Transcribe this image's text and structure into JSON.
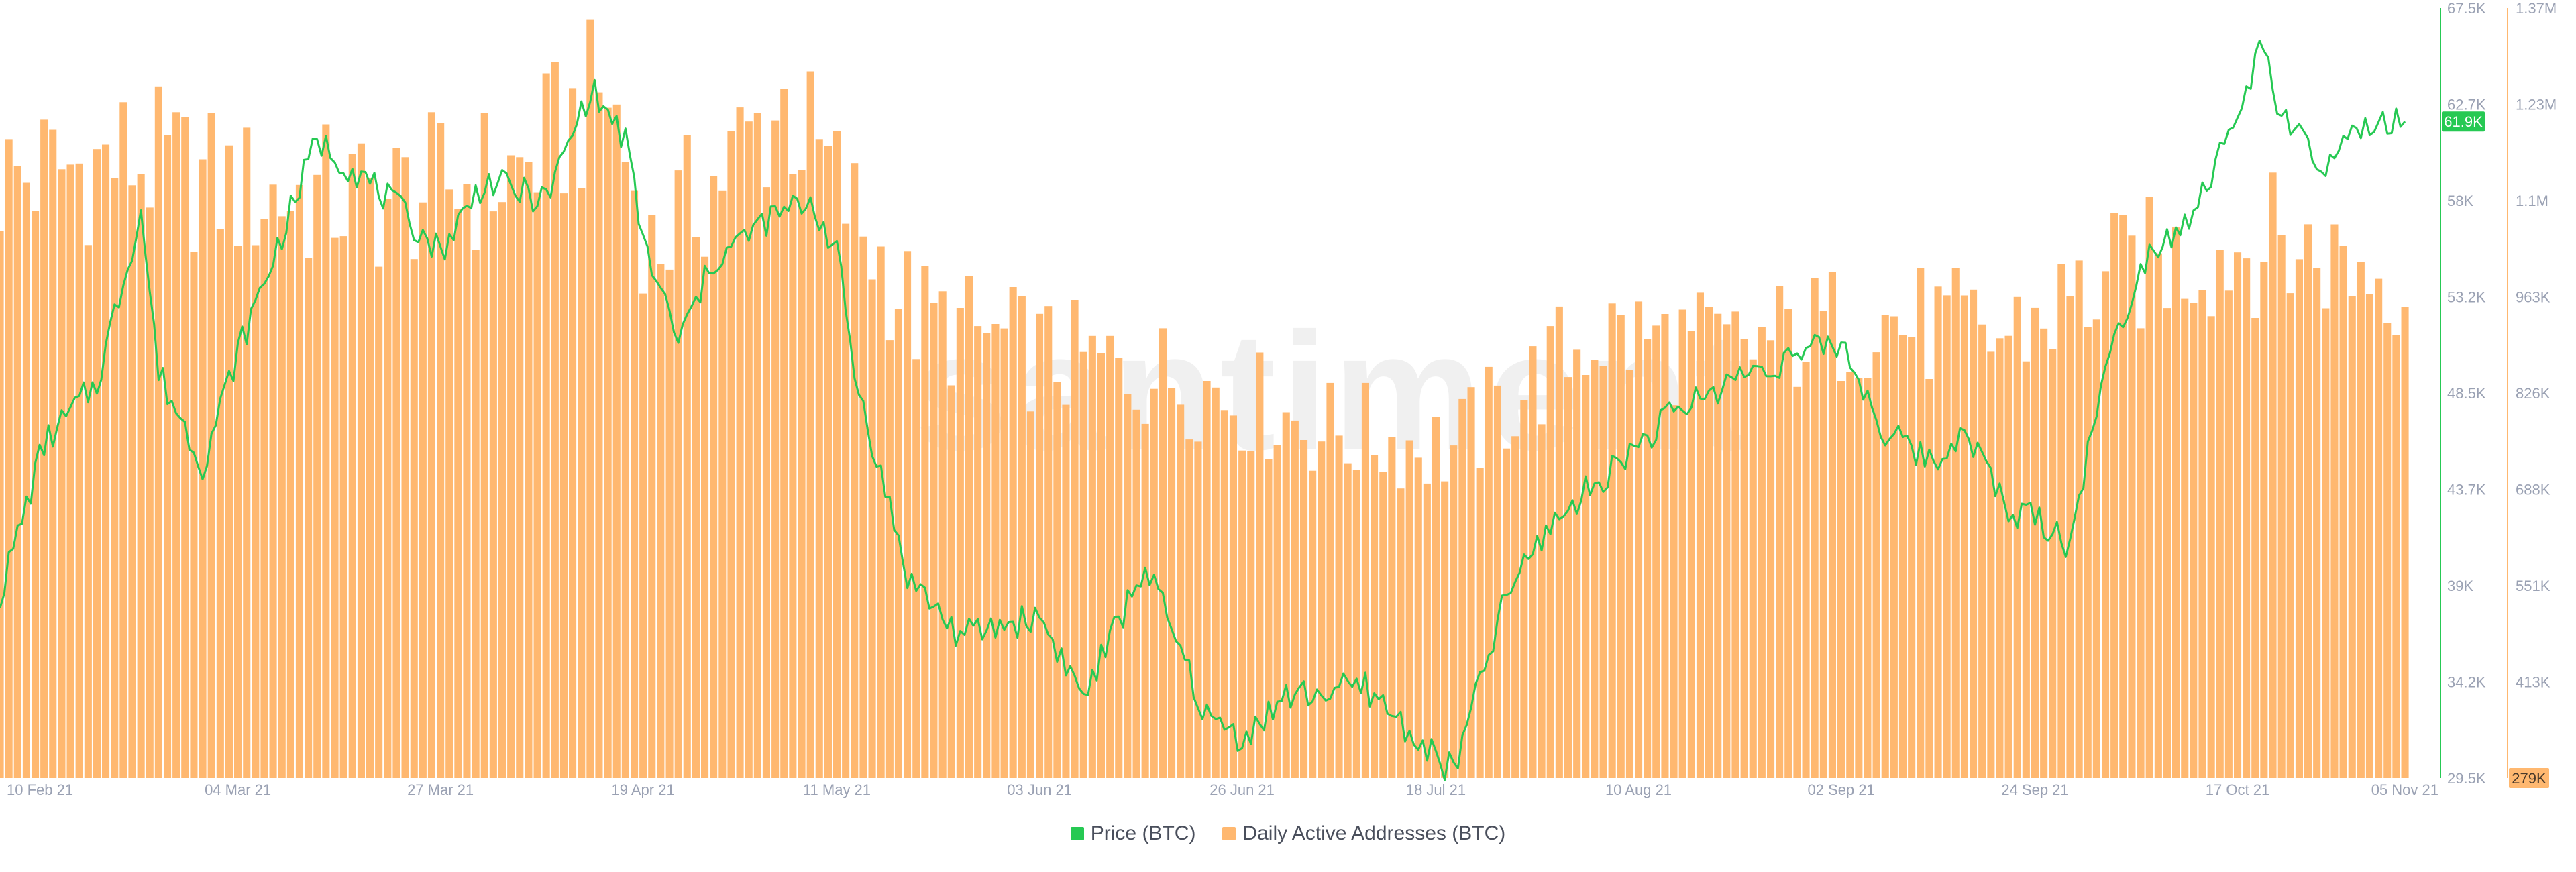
{
  "legend": {
    "price_label": "Price (BTC)",
    "addresses_label": "Daily Active Addresses (BTC)"
  },
  "watermark": "santiment",
  "colors": {
    "price": "#26c953",
    "addresses_bar": "#ffb870",
    "addresses_bar_edge": "#f5a24e",
    "price_badge": "#26c953",
    "addresses_badge": "#ffb870",
    "axis_text": "#9aa1b3",
    "axis_line_price": "#26c953",
    "axis_line_addresses": "#ffb870"
  },
  "chart_data": {
    "type": "bar+line",
    "x_axis": {
      "start": "2021-02-05",
      "end": "2021-11-05",
      "tick_labels": [
        "10 Feb 21",
        "04 Mar 21",
        "27 Mar 21",
        "19 Apr 21",
        "11 May 21",
        "03 Jun 21",
        "26 Jun 21",
        "18 Jul 21",
        "10 Aug 21",
        "02 Sep 21",
        "24 Sep 21",
        "17 Oct 21",
        "05 Nov 21"
      ]
    },
    "price_axis": {
      "min": 29500,
      "max": 67500,
      "tick_labels": [
        "67.5K",
        "62.7K",
        "58K",
        "53.2K",
        "48.5K",
        "43.7K",
        "39K",
        "34.2K",
        "29.5K"
      ],
      "current_badge": "61.9K"
    },
    "addresses_axis": {
      "min": 279000,
      "max": 1370000,
      "tick_labels": [
        "1.37M",
        "1.23M",
        "1.1M",
        "963K",
        "826K",
        "688K",
        "551K",
        "413K",
        "279K"
      ],
      "min_badge": "279K"
    },
    "series": [
      {
        "name": "Price (BTC)",
        "kind": "line",
        "x": [
          "2021-02-05",
          "2021-02-10",
          "2021-02-16",
          "2021-02-21",
          "2021-02-23",
          "2021-02-28",
          "2021-03-04",
          "2021-03-10",
          "2021-03-13",
          "2021-03-20",
          "2021-03-27",
          "2021-04-01",
          "2021-04-08",
          "2021-04-13",
          "2021-04-17",
          "2021-04-19",
          "2021-04-23",
          "2021-04-27",
          "2021-05-03",
          "2021-05-08",
          "2021-05-11",
          "2021-05-13",
          "2021-05-19",
          "2021-05-25",
          "2021-06-03",
          "2021-06-08",
          "2021-06-15",
          "2021-06-22",
          "2021-06-26",
          "2021-07-01",
          "2021-07-10",
          "2021-07-18",
          "2021-07-20",
          "2021-07-26",
          "2021-07-31",
          "2021-08-10",
          "2021-08-14",
          "2021-08-22",
          "2021-09-02",
          "2021-09-07",
          "2021-09-13",
          "2021-09-16",
          "2021-09-21",
          "2021-09-24",
          "2021-09-28",
          "2021-10-01",
          "2021-10-06",
          "2021-10-12",
          "2021-10-17",
          "2021-10-20",
          "2021-10-22",
          "2021-10-27",
          "2021-10-31",
          "2021-11-05"
        ],
        "y": [
          38500,
          46000,
          49000,
          57500,
          49500,
          45000,
          50500,
          57500,
          61000,
          58500,
          55500,
          59000,
          58000,
          63500,
          61000,
          56000,
          51000,
          55000,
          57000,
          58000,
          55500,
          49500,
          39500,
          36500,
          37500,
          33500,
          40000,
          32500,
          31500,
          33500,
          34000,
          30500,
          29800,
          38500,
          42000,
          46000,
          47500,
          49500,
          51000,
          46500,
          45000,
          47000,
          42500,
          42500,
          41000,
          48000,
          55000,
          57500,
          62000,
          66000,
          62000,
          59500,
          61500,
          61900
        ]
      },
      {
        "name": "Daily Active Addresses (BTC)",
        "kind": "bar",
        "x": [
          "2021-02-05",
          "2021-02-20",
          "2021-03-05",
          "2021-03-20",
          "2021-04-05",
          "2021-04-15",
          "2021-04-20",
          "2021-05-05",
          "2021-05-11",
          "2021-05-20",
          "2021-06-05",
          "2021-06-20",
          "2021-07-05",
          "2021-07-20",
          "2021-08-05",
          "2021-08-20",
          "2021-09-05",
          "2021-09-20",
          "2021-10-05",
          "2021-10-20",
          "2021-11-05"
        ],
        "y": [
          1150000,
          1180000,
          1130000,
          1120000,
          1160000,
          1280000,
          1050000,
          1260000,
          1140000,
          950000,
          890000,
          860000,
          790000,
          760000,
          930000,
          900000,
          950000,
          920000,
          1020000,
          1060000,
          1010000
        ]
      }
    ]
  }
}
